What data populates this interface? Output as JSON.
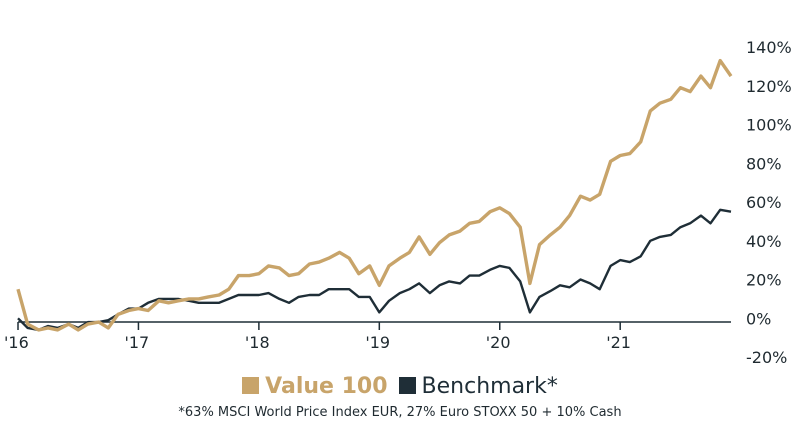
{
  "chart_data": {
    "type": "line",
    "x_ticks": [
      "'16",
      "'17",
      "'18",
      "'19",
      "'20",
      "'21"
    ],
    "y_ticks": [
      "140%",
      "120%",
      "100%",
      "80%",
      "60%",
      "40%",
      "20%",
      "0%",
      "-20%"
    ],
    "ylim": [
      -20,
      140
    ],
    "xlim": [
      2016.0,
      2021.92
    ],
    "grid": false,
    "legend_position": "bottom",
    "colors": {
      "value100": "#c8a46a",
      "benchmark": "#1f2e37"
    },
    "series": [
      {
        "name": "Value 100",
        "x": [
          2016.0,
          2016.08,
          2016.17,
          2016.25,
          2016.33,
          2016.42,
          2016.5,
          2016.58,
          2016.67,
          2016.75,
          2016.83,
          2016.92,
          2017.0,
          2017.08,
          2017.17,
          2017.25,
          2017.33,
          2017.42,
          2017.5,
          2017.58,
          2017.67,
          2017.75,
          2017.83,
          2017.92,
          2018.0,
          2018.08,
          2018.17,
          2018.25,
          2018.33,
          2018.42,
          2018.5,
          2018.58,
          2018.67,
          2018.75,
          2018.83,
          2018.92,
          2019.0,
          2019.08,
          2019.17,
          2019.25,
          2019.33,
          2019.42,
          2019.5,
          2019.58,
          2019.67,
          2019.75,
          2019.83,
          2019.92,
          2020.0,
          2020.08,
          2020.17,
          2020.25,
          2020.33,
          2020.42,
          2020.5,
          2020.58,
          2020.67,
          2020.75,
          2020.83,
          2020.92,
          2021.0,
          2021.08,
          2021.17,
          2021.25,
          2021.33,
          2021.42,
          2021.5,
          2021.58,
          2021.67,
          2021.75,
          2021.83,
          2021.92
        ],
        "values": [
          15,
          -3,
          -6,
          -5,
          -6,
          -3,
          -6,
          -3,
          -2,
          -5,
          2,
          4,
          5,
          4,
          9,
          8,
          9,
          10,
          10,
          11,
          12,
          15,
          22,
          22,
          23,
          27,
          26,
          22,
          23,
          28,
          29,
          31,
          34,
          31,
          23,
          27,
          17,
          27,
          31,
          34,
          42,
          33,
          39,
          43,
          45,
          49,
          50,
          55,
          57,
          54,
          47,
          18,
          38,
          43,
          47,
          53,
          63,
          61,
          64,
          81,
          84,
          85,
          91,
          107,
          111,
          113,
          119,
          117,
          125,
          119,
          133,
          125
        ]
      },
      {
        "name": "Benchmark*",
        "x": [
          2016.0,
          2016.08,
          2016.17,
          2016.25,
          2016.33,
          2016.42,
          2016.5,
          2016.58,
          2016.67,
          2016.75,
          2016.83,
          2016.92,
          2017.0,
          2017.08,
          2017.17,
          2017.25,
          2017.33,
          2017.42,
          2017.5,
          2017.58,
          2017.67,
          2017.75,
          2017.83,
          2017.92,
          2018.0,
          2018.08,
          2018.17,
          2018.25,
          2018.33,
          2018.42,
          2018.5,
          2018.58,
          2018.67,
          2018.75,
          2018.83,
          2018.92,
          2019.0,
          2019.08,
          2019.17,
          2019.25,
          2019.33,
          2019.42,
          2019.5,
          2019.58,
          2019.67,
          2019.75,
          2019.83,
          2019.92,
          2020.0,
          2020.08,
          2020.17,
          2020.25,
          2020.33,
          2020.42,
          2020.5,
          2020.58,
          2020.67,
          2020.75,
          2020.83,
          2020.92,
          2021.0,
          2021.08,
          2021.17,
          2021.25,
          2021.33,
          2021.42,
          2021.5,
          2021.58,
          2021.67,
          2021.75,
          2021.83,
          2021.92
        ],
        "values": [
          0,
          -5,
          -6,
          -4,
          -5,
          -3,
          -5,
          -2,
          -2,
          -1,
          2,
          5,
          5,
          8,
          10,
          10,
          10,
          9,
          8,
          8,
          8,
          10,
          12,
          12,
          12,
          13,
          10,
          8,
          11,
          12,
          12,
          15,
          15,
          15,
          11,
          11,
          3,
          9,
          13,
          15,
          18,
          13,
          17,
          19,
          18,
          22,
          22,
          25,
          27,
          26,
          19,
          3,
          11,
          14,
          17,
          16,
          20,
          18,
          15,
          27,
          30,
          29,
          32,
          40,
          42,
          43,
          47,
          49,
          53,
          49,
          56,
          55
        ]
      }
    ],
    "legend_labels": {
      "value100": "Value 100",
      "benchmark": "Benchmark*"
    },
    "footnote": "*63% MSCI World Price Index EUR, 27% Euro STOXX 50 + 10% Cash"
  }
}
